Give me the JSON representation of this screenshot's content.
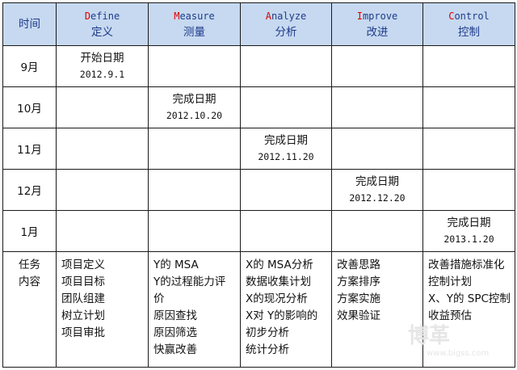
{
  "header": {
    "time": "时间",
    "phases": [
      {
        "letter": "D",
        "rest": "efine",
        "cn": "定义"
      },
      {
        "letter": "M",
        "rest": "easure",
        "cn": "测量"
      },
      {
        "letter": "A",
        "rest": "nalyze",
        "cn": "分析"
      },
      {
        "letter": "I",
        "rest": "mprove",
        "cn": "改进"
      },
      {
        "letter": "C",
        "rest": "ontrol",
        "cn": "控制"
      }
    ]
  },
  "rows": [
    {
      "month": "9月",
      "label": "开始日期",
      "date": "2012.9.1"
    },
    {
      "month": "10月",
      "label": "完成日期",
      "date": "2012.10.20"
    },
    {
      "month": "11月",
      "label": "完成日期",
      "date": "2012.11.20"
    },
    {
      "month": "12月",
      "label": "完成日期",
      "date": "2012.12.20"
    },
    {
      "month": "1月",
      "label": "完成日期",
      "date": "2013.1.20"
    }
  ],
  "tasks": {
    "label_line1": "任务",
    "label_line2": "内容",
    "define": [
      "项目定义",
      "项目目标",
      "团队组建",
      "树立计划",
      "项目审批"
    ],
    "measure": [
      "Y的 MSA",
      "Y的过程能力评",
      "价",
      "原因查找",
      "原因筛选",
      "快赢改善"
    ],
    "analyze": [
      "X的 MSA分析",
      "数据收集计划",
      "X的现况分析",
      "X对 Y的影响的",
      "初步分析",
      "统计分析"
    ],
    "improve": [
      "改善思路",
      "方案排序",
      "方案实施",
      "效果验证"
    ],
    "control": [
      "改善措施标准化",
      "控制计划",
      "X、Y的 SPC控制",
      "收益预估"
    ]
  },
  "watermark": {
    "logo": "博革",
    "url": "www.bigss.com"
  },
  "colors": {
    "header_bg": "#c6d9f0",
    "accent_letter": "#e00000",
    "header_text": "#1f3a8a"
  }
}
